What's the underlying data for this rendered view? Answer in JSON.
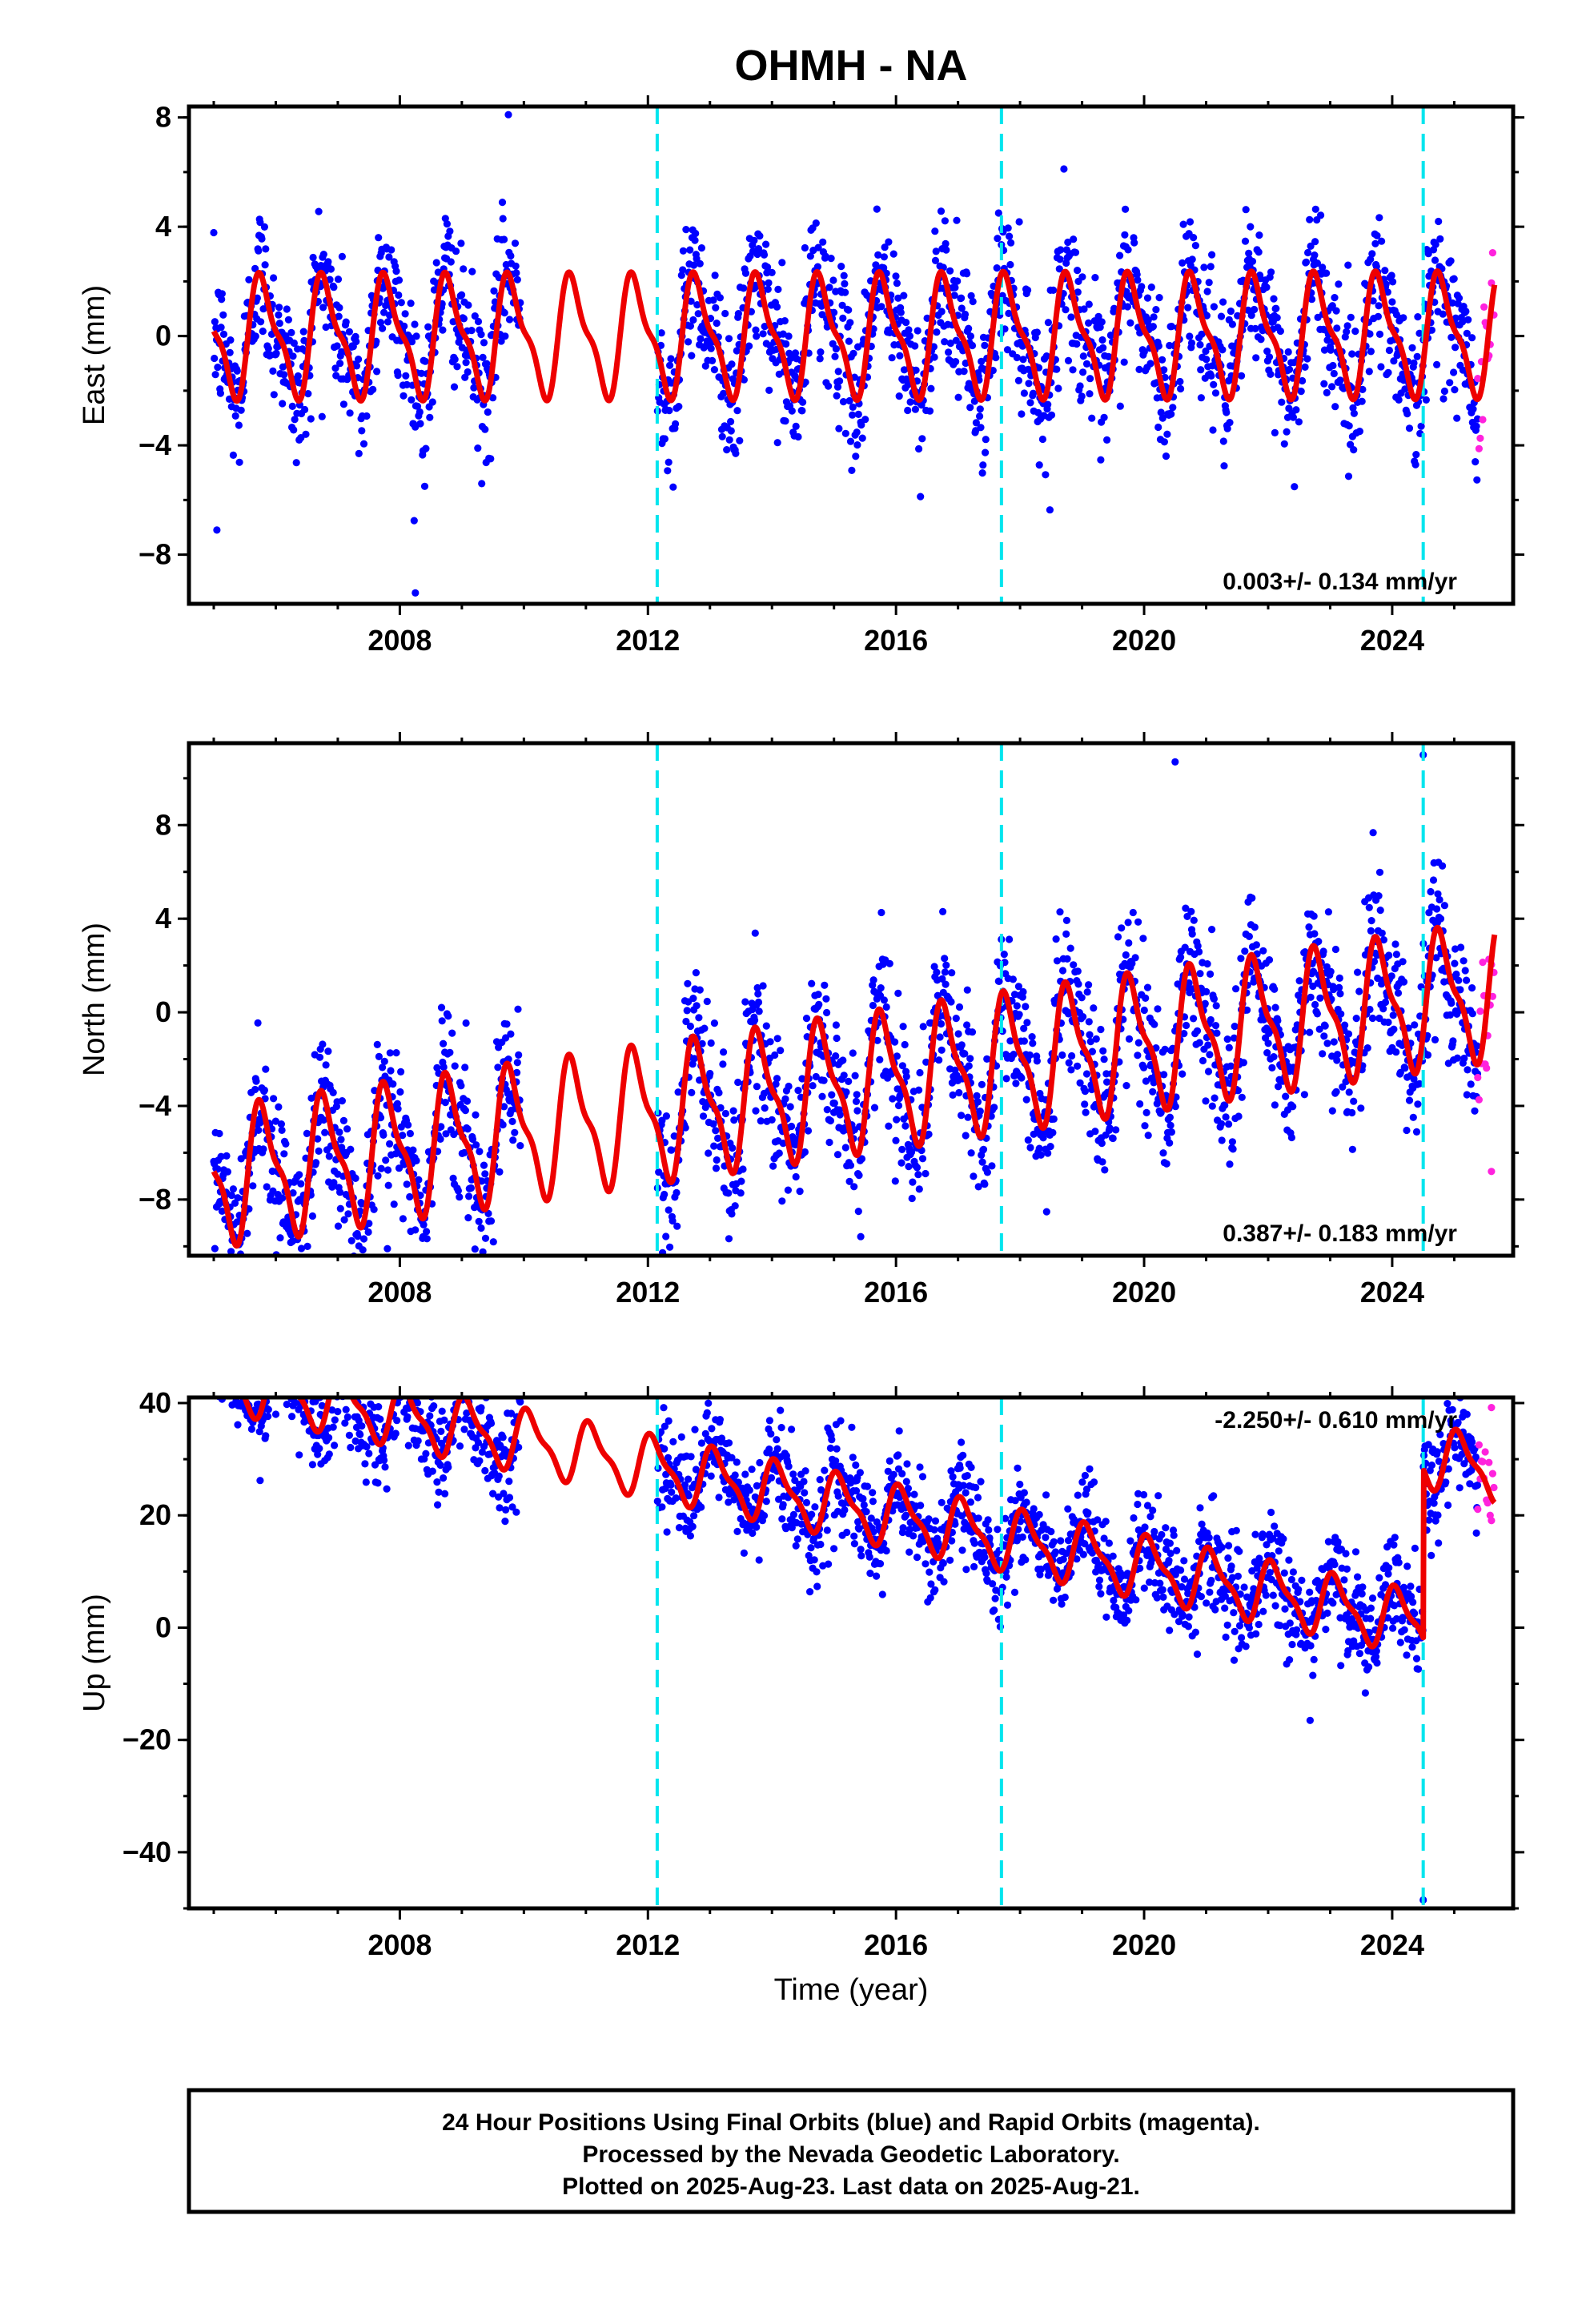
{
  "chart_data": {
    "type": "scatter",
    "title": "OHMH - NA",
    "xlabel": "Time (year)",
    "xlim": [
      2004.6,
      2025.95
    ],
    "x_ticks": [
      "2008",
      "2012",
      "2016",
      "2020",
      "2024"
    ],
    "breaks": [
      2012.15,
      2017.7,
      2024.5
    ],
    "colors": {
      "final_orbits": "#0000ff",
      "rapid_orbits": "#ff22dd",
      "model": "#ee0000",
      "breaks": "#00e5ee"
    },
    "data_gap": [
      2009.95,
      2012.15
    ],
    "rapid_start": 2025.38,
    "panels": [
      {
        "ylabel": "East (mm)",
        "ylim": [
          -9.8,
          8.4
        ],
        "y_ticks": [
          "8",
          "4",
          "0",
          "−4",
          "−8"
        ],
        "y_tick_values": [
          8,
          4,
          0,
          -4,
          -8
        ],
        "rate_label": "0.003+/- 0.134 mm/yr",
        "rate_position": "bottom-right",
        "model": {
          "offset": 0,
          "trend": 0.003,
          "amplitude": 2.0,
          "phase": 0.55,
          "noise": 1.3
        },
        "outliers": [
          [
            2009.75,
            8.1
          ],
          [
            2008.25,
            -9.4
          ],
          [
            2005.05,
            -7.1
          ]
        ]
      },
      {
        "ylabel": "North (mm)",
        "ylim": [
          -10.4,
          11.5
        ],
        "y_ticks": [
          "8",
          "4",
          "0",
          "−4",
          "−8"
        ],
        "y_tick_values": [
          8,
          4,
          0,
          -4,
          -8
        ],
        "rate_label": "0.387+/- 0.183 mm/yr",
        "rate_position": "bottom-right",
        "model": {
          "offset": -3.2,
          "trend": 0.387,
          "amplitude": 2.6,
          "phase": 0.55,
          "noise": 1.6
        },
        "outliers": [
          [
            2024.5,
            11.0
          ],
          [
            2020.5,
            10.7
          ],
          [
            2007.8,
            -10.1
          ],
          [
            2025.6,
            -6.8
          ]
        ]
      },
      {
        "ylabel": "Up (mm)",
        "ylim": [
          -50,
          41
        ],
        "y_ticks": [
          "40",
          "20",
          "0",
          "−20",
          "−40"
        ],
        "y_tick_values": [
          40,
          20,
          0,
          -20,
          -40
        ],
        "rate_label": "-2.250+/- 0.610 mm/yr",
        "rate_position": "top-right",
        "model": {
          "offset": 22,
          "trend": -2.25,
          "amplitude": 5.0,
          "phase": 0.85,
          "noise": 4.5
        },
        "post_break_offset": 30,
        "outliers": [
          [
            2024.5,
            -48.5
          ],
          [
            2025.6,
            39.2
          ],
          [
            2006.0,
            38.0
          ]
        ]
      }
    ],
    "footer": [
      "24 Hour Positions Using Final Orbits (blue) and Rapid Orbits (magenta).",
      "Processed by the Nevada Geodetic Laboratory.",
      "Plotted on 2025-Aug-23. Last data on 2025-Aug-21."
    ]
  }
}
